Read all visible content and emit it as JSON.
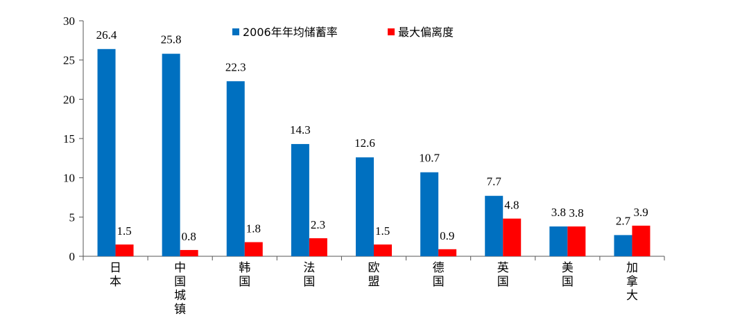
{
  "chart_data": {
    "type": "bar",
    "categories": [
      "日本",
      "中国城镇",
      "韩国",
      "法国",
      "欧盟",
      "德国",
      "英国",
      "美国",
      "加拿大"
    ],
    "series": [
      {
        "name": "2006年年均储蓄率",
        "color": "#0070C0",
        "values": [
          26.4,
          25.8,
          22.3,
          14.3,
          12.6,
          10.7,
          7.7,
          3.8,
          2.7
        ]
      },
      {
        "name": "最大偏离度",
        "color": "#FF0000",
        "values": [
          1.5,
          0.8,
          1.8,
          2.3,
          1.5,
          0.9,
          4.8,
          3.8,
          3.9
        ]
      }
    ],
    "ylim": [
      0,
      30
    ],
    "yticks": [
      0,
      5,
      10,
      15,
      20,
      25,
      30
    ],
    "title": "",
    "xlabel": "",
    "ylabel": "",
    "legend": "top"
  }
}
